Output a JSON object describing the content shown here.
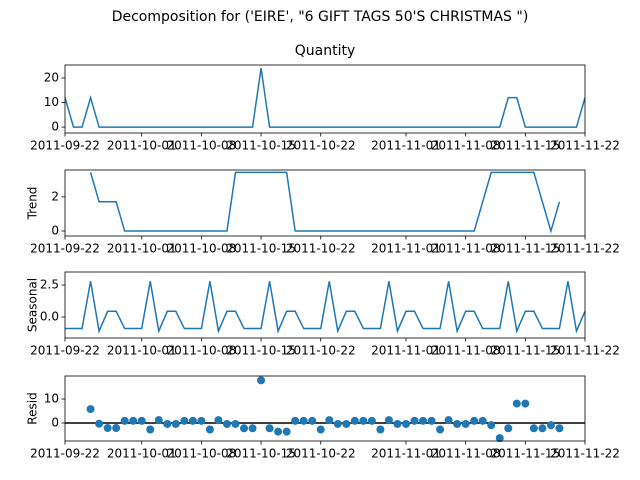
{
  "title": "Decomposition for ('EIRE', \"6 GIFT TAGS 50'S CHRISTMAS \")",
  "chart_data": [
    {
      "type": "line",
      "title": "Quantity",
      "color": "#1f77b4",
      "x": [
        "2011-09-22",
        "2011-09-23",
        "2011-09-24",
        "2011-09-25",
        "2011-09-26",
        "2011-09-27",
        "2011-09-28",
        "2011-09-29",
        "2011-09-30",
        "2011-10-01",
        "2011-10-02",
        "2011-10-03",
        "2011-10-04",
        "2011-10-05",
        "2011-10-06",
        "2011-10-07",
        "2011-10-08",
        "2011-10-09",
        "2011-10-10",
        "2011-10-11",
        "2011-10-12",
        "2011-10-13",
        "2011-10-14",
        "2011-10-15",
        "2011-10-16",
        "2011-10-17",
        "2011-10-18",
        "2011-10-19",
        "2011-10-20",
        "2011-10-21",
        "2011-10-22",
        "2011-10-23",
        "2011-10-24",
        "2011-10-25",
        "2011-10-26",
        "2011-10-27",
        "2011-10-28",
        "2011-10-29",
        "2011-10-30",
        "2011-10-31",
        "2011-11-01",
        "2011-11-02",
        "2011-11-03",
        "2011-11-04",
        "2011-11-05",
        "2011-11-06",
        "2011-11-07",
        "2011-11-08",
        "2011-11-09",
        "2011-11-10",
        "2011-11-11",
        "2011-11-12",
        "2011-11-13",
        "2011-11-14",
        "2011-11-15",
        "2011-11-16",
        "2011-11-17",
        "2011-11-18",
        "2011-11-19",
        "2011-11-20",
        "2011-11-21",
        "2011-11-22"
      ],
      "values": [
        12,
        0,
        0,
        12,
        0,
        0,
        0,
        0,
        0,
        0,
        0,
        0,
        0,
        0,
        0,
        0,
        0,
        0,
        0,
        0,
        0,
        0,
        0,
        24,
        0,
        0,
        0,
        0,
        0,
        0,
        0,
        0,
        0,
        0,
        0,
        0,
        0,
        0,
        0,
        0,
        0,
        0,
        0,
        0,
        0,
        0,
        0,
        0,
        0,
        0,
        0,
        0,
        12,
        12,
        0,
        0,
        0,
        0,
        0,
        0,
        0,
        12
      ],
      "xlim": [
        "2011-09-22",
        "2011-11-22"
      ],
      "xticks": [
        "2011-09-22",
        "2011-10-01",
        "2011-10-08",
        "2011-10-15",
        "2011-10-22",
        "2011-11-01",
        "2011-11-08",
        "2011-11-15",
        "2011-11-22"
      ],
      "ylim": [
        -2.4,
        25.3
      ],
      "yticks": [
        0,
        10,
        20
      ]
    },
    {
      "type": "line",
      "ylabel": "Trend",
      "color": "#1f77b4",
      "x": [
        "2011-09-22",
        "2011-09-23",
        "2011-09-24",
        "2011-09-25",
        "2011-09-26",
        "2011-09-27",
        "2011-09-28",
        "2011-09-29",
        "2011-09-30",
        "2011-10-01",
        "2011-10-02",
        "2011-10-03",
        "2011-10-04",
        "2011-10-05",
        "2011-10-06",
        "2011-10-07",
        "2011-10-08",
        "2011-10-09",
        "2011-10-10",
        "2011-10-11",
        "2011-10-12",
        "2011-10-13",
        "2011-10-14",
        "2011-10-15",
        "2011-10-16",
        "2011-10-17",
        "2011-10-18",
        "2011-10-19",
        "2011-10-20",
        "2011-10-21",
        "2011-10-22",
        "2011-10-23",
        "2011-10-24",
        "2011-10-25",
        "2011-10-26",
        "2011-10-27",
        "2011-10-28",
        "2011-10-29",
        "2011-10-30",
        "2011-10-31",
        "2011-11-01",
        "2011-11-02",
        "2011-11-03",
        "2011-11-04",
        "2011-11-05",
        "2011-11-06",
        "2011-11-07",
        "2011-11-08",
        "2011-11-09",
        "2011-11-10",
        "2011-11-11",
        "2011-11-12",
        "2011-11-13",
        "2011-11-14",
        "2011-11-15",
        "2011-11-16",
        "2011-11-17",
        "2011-11-18",
        "2011-11-19",
        "2011-11-20",
        "2011-11-21",
        "2011-11-22"
      ],
      "values": [
        null,
        null,
        null,
        3.43,
        1.71,
        1.71,
        1.71,
        0,
        0,
        0,
        0,
        0,
        0,
        0,
        0,
        0,
        0,
        0,
        0,
        0,
        3.43,
        3.43,
        3.43,
        3.43,
        3.43,
        3.43,
        3.43,
        0,
        0,
        0,
        0,
        0,
        0,
        0,
        0,
        0,
        0,
        0,
        0,
        0,
        0,
        0,
        0,
        0,
        0,
        0,
        0,
        0,
        0,
        1.71,
        3.43,
        3.43,
        3.43,
        3.43,
        3.43,
        3.43,
        1.71,
        0,
        1.71,
        null,
        null,
        null
      ],
      "xlim": [
        "2011-09-22",
        "2011-11-22"
      ],
      "xticks": [
        "2011-09-22",
        "2011-10-01",
        "2011-10-08",
        "2011-10-15",
        "2011-10-22",
        "2011-11-01",
        "2011-11-08",
        "2011-11-15",
        "2011-11-22"
      ],
      "ylim": [
        -0.29,
        3.57
      ],
      "yticks": [
        0,
        2
      ]
    },
    {
      "type": "line",
      "ylabel": "Seasonal",
      "color": "#1f77b4",
      "x": [
        "2011-09-22",
        "2011-09-23",
        "2011-09-24",
        "2011-09-25",
        "2011-09-26",
        "2011-09-27",
        "2011-09-28",
        "2011-09-29",
        "2011-09-30",
        "2011-10-01",
        "2011-10-02",
        "2011-10-03",
        "2011-10-04",
        "2011-10-05",
        "2011-10-06",
        "2011-10-07",
        "2011-10-08",
        "2011-10-09",
        "2011-10-10",
        "2011-10-11",
        "2011-10-12",
        "2011-10-13",
        "2011-10-14",
        "2011-10-15",
        "2011-10-16",
        "2011-10-17",
        "2011-10-18",
        "2011-10-19",
        "2011-10-20",
        "2011-10-21",
        "2011-10-22",
        "2011-10-23",
        "2011-10-24",
        "2011-10-25",
        "2011-10-26",
        "2011-10-27",
        "2011-10-28",
        "2011-10-29",
        "2011-10-30",
        "2011-10-31",
        "2011-11-01",
        "2011-11-02",
        "2011-11-03",
        "2011-11-04",
        "2011-11-05",
        "2011-11-06",
        "2011-11-07",
        "2011-11-08",
        "2011-11-09",
        "2011-11-10",
        "2011-11-11",
        "2011-11-12",
        "2011-11-13",
        "2011-11-14",
        "2011-11-15",
        "2011-11-16",
        "2011-11-17",
        "2011-11-18",
        "2011-11-19",
        "2011-11-20",
        "2011-11-21",
        "2011-11-22"
      ],
      "values": [
        -0.9,
        -0.9,
        -0.9,
        2.8,
        -1.1,
        0.45,
        0.45,
        -0.9,
        -0.9,
        -0.9,
        2.8,
        -1.1,
        0.45,
        0.45,
        -0.9,
        -0.9,
        -0.9,
        2.8,
        -1.1,
        0.45,
        0.45,
        -0.9,
        -0.9,
        -0.9,
        2.8,
        -1.1,
        0.45,
        0.45,
        -0.9,
        -0.9,
        -0.9,
        2.8,
        -1.1,
        0.45,
        0.45,
        -0.9,
        -0.9,
        -0.9,
        2.8,
        -1.1,
        0.45,
        0.45,
        -0.9,
        -0.9,
        -0.9,
        2.8,
        -1.1,
        0.45,
        0.45,
        -0.9,
        -0.9,
        -0.9,
        2.8,
        -1.1,
        0.45,
        0.45,
        -0.9,
        -0.9,
        -0.9,
        2.8,
        -1.1,
        0.45
      ],
      "xlim": [
        "2011-09-22",
        "2011-11-22"
      ],
      "xticks": [
        "2011-09-22",
        "2011-10-01",
        "2011-10-08",
        "2011-10-15",
        "2011-10-22",
        "2011-11-01",
        "2011-11-08",
        "2011-11-15",
        "2011-11-22"
      ],
      "ylim": [
        -1.64,
        3.52
      ],
      "yticks": [
        {
          "value": 0,
          "label": "0.0"
        },
        2.5
      ]
    },
    {
      "type": "scatter",
      "ylabel": "Resid",
      "color": "#1f77b4",
      "hline": 0,
      "x": [
        "2011-09-22",
        "2011-09-23",
        "2011-09-24",
        "2011-09-25",
        "2011-09-26",
        "2011-09-27",
        "2011-09-28",
        "2011-09-29",
        "2011-09-30",
        "2011-10-01",
        "2011-10-02",
        "2011-10-03",
        "2011-10-04",
        "2011-10-05",
        "2011-10-06",
        "2011-10-07",
        "2011-10-08",
        "2011-10-09",
        "2011-10-10",
        "2011-10-11",
        "2011-10-12",
        "2011-10-13",
        "2011-10-14",
        "2011-10-15",
        "2011-10-16",
        "2011-10-17",
        "2011-10-18",
        "2011-10-19",
        "2011-10-20",
        "2011-10-21",
        "2011-10-22",
        "2011-10-23",
        "2011-10-24",
        "2011-10-25",
        "2011-10-26",
        "2011-10-27",
        "2011-10-28",
        "2011-10-29",
        "2011-10-30",
        "2011-10-31",
        "2011-11-01",
        "2011-11-02",
        "2011-11-03",
        "2011-11-04",
        "2011-11-05",
        "2011-11-06",
        "2011-11-07",
        "2011-11-08",
        "2011-11-09",
        "2011-11-10",
        "2011-11-11",
        "2011-11-12",
        "2011-11-13",
        "2011-11-14",
        "2011-11-15",
        "2011-11-16",
        "2011-11-17",
        "2011-11-18",
        "2011-11-19",
        "2011-11-20",
        "2011-11-21",
        "2011-11-22"
      ],
      "values": [
        null,
        null,
        null,
        5.8,
        -0.3,
        -2.1,
        -2.1,
        0.9,
        0.9,
        0.9,
        -2.7,
        1.2,
        -0.4,
        -0.4,
        0.9,
        0.9,
        0.9,
        -2.7,
        1.2,
        -0.4,
        -0.4,
        -2.2,
        -2.2,
        17.8,
        -2.2,
        -3.6,
        -3.6,
        0.9,
        0.9,
        0.9,
        -2.7,
        1.2,
        -0.4,
        -0.4,
        0.9,
        0.9,
        0.9,
        -2.7,
        1.2,
        -0.4,
        -0.4,
        0.9,
        0.9,
        0.9,
        -2.7,
        1.2,
        -0.4,
        -0.4,
        0.9,
        0.9,
        -0.9,
        -6.3,
        -2.2,
        8.1,
        8.1,
        -2.2,
        -2.2,
        -0.9,
        -2.2,
        null,
        null,
        null
      ],
      "xlim": [
        "2011-09-22",
        "2011-11-22"
      ],
      "xticks": [
        "2011-09-22",
        "2011-10-01",
        "2011-10-08",
        "2011-10-15",
        "2011-10-22",
        "2011-11-01",
        "2011-11-08",
        "2011-11-15",
        "2011-11-22"
      ],
      "ylim": [
        -7.5,
        19.6
      ],
      "yticks": [
        0,
        10
      ]
    }
  ]
}
